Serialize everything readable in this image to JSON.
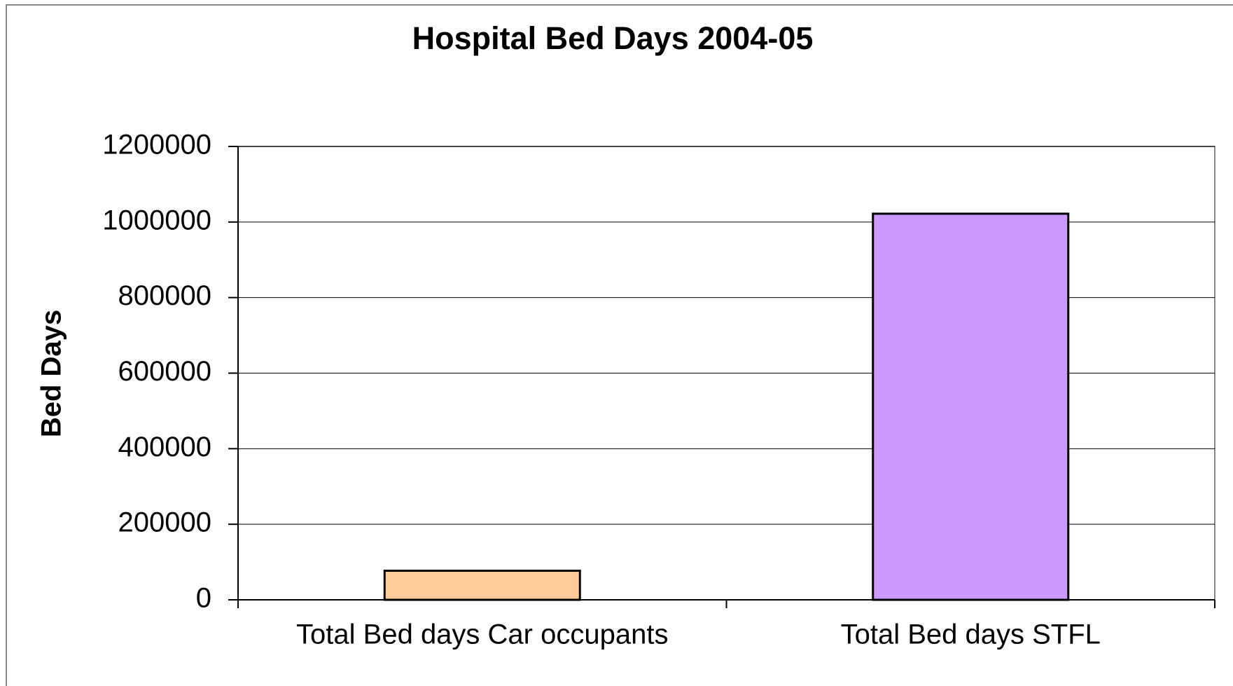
{
  "chart_data": {
    "type": "bar",
    "title": "Hospital Bed Days 2004-05",
    "y_label": "Bed Days",
    "categories": [
      "Total Bed days Car occupants",
      "Total Bed days STFL"
    ],
    "values": [
      77000,
      1022000
    ],
    "colors": [
      "#ffcc99",
      "#cc99ff"
    ],
    "ylim": [
      0,
      1200000
    ],
    "yticks": [
      0,
      200000,
      400000,
      600000,
      800000,
      1000000,
      1200000
    ],
    "grid": true
  }
}
